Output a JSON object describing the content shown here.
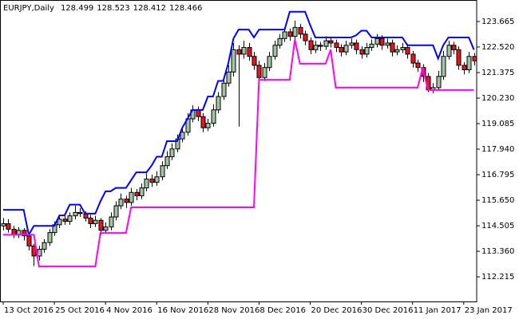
{
  "chart_data": {
    "type": "candlestick",
    "title": "EURJPY,Daily",
    "quote": [
      128.499,
      128.523,
      128.412,
      128.466
    ],
    "categories": [
      "13 Oct 2016",
      null,
      null,
      null,
      null,
      null,
      null,
      null,
      null,
      null,
      "25 Oct 2016",
      null,
      null,
      null,
      null,
      null,
      null,
      null,
      null,
      null,
      "4 Nov 2016",
      null,
      null,
      null,
      null,
      null,
      null,
      null,
      null,
      null,
      "16 Nov 2016",
      null,
      null,
      null,
      null,
      null,
      null,
      null,
      null,
      null,
      "28 Nov 2016",
      null,
      null,
      null,
      null,
      null,
      null,
      null,
      null,
      null,
      "8 Dec 2016",
      null,
      null,
      null,
      null,
      null,
      null,
      null,
      null,
      null,
      "20 Dec 2016",
      null,
      null,
      null,
      null,
      null,
      null,
      null,
      null,
      null,
      "30 Dec 2016",
      null,
      null,
      null,
      null,
      null,
      null,
      null,
      null,
      null,
      "11 Jan 2017",
      null,
      null,
      null,
      null,
      null,
      null,
      null,
      null,
      null,
      "23 Jan 2017",
      null,
      null
    ],
    "candles": [
      [
        114.5,
        114.85,
        114.3,
        114.6
      ],
      [
        114.6,
        114.8,
        114.2,
        114.35
      ],
      [
        114.35,
        114.5,
        113.95,
        114.1
      ],
      [
        114.1,
        114.45,
        113.95,
        114.3
      ],
      [
        114.3,
        114.4,
        113.85,
        114.05
      ],
      [
        114.05,
        114.2,
        113.4,
        113.6
      ],
      [
        113.6,
        113.7,
        112.7,
        113.15
      ],
      [
        113.15,
        113.6,
        112.95,
        113.45
      ],
      [
        113.45,
        113.9,
        113.3,
        113.75
      ],
      [
        113.75,
        114.35,
        113.6,
        114.2
      ],
      [
        114.2,
        114.7,
        114.05,
        114.55
      ],
      [
        114.55,
        114.95,
        114.4,
        114.8
      ],
      [
        114.8,
        114.95,
        114.55,
        114.7
      ],
      [
        114.7,
        115.1,
        114.55,
        114.95
      ],
      [
        114.95,
        115.4,
        114.8,
        115.1
      ],
      [
        115.1,
        115.3,
        114.9,
        115.05
      ],
      [
        115.05,
        115.15,
        114.7,
        114.85
      ],
      [
        114.85,
        115.0,
        114.4,
        114.6
      ],
      [
        114.6,
        114.95,
        114.45,
        114.75
      ],
      [
        114.75,
        114.85,
        114.1,
        114.3
      ],
      [
        114.3,
        114.65,
        114.15,
        114.45
      ],
      [
        114.45,
        115.1,
        114.3,
        114.9
      ],
      [
        114.9,
        115.6,
        114.75,
        115.4
      ],
      [
        115.4,
        115.95,
        115.25,
        115.7
      ],
      [
        115.7,
        115.85,
        115.3,
        115.55
      ],
      [
        115.55,
        116.2,
        115.4,
        116.0
      ],
      [
        116.0,
        116.15,
        115.65,
        115.85
      ],
      [
        115.85,
        116.4,
        115.7,
        116.2
      ],
      [
        116.2,
        116.85,
        116.05,
        116.6
      ],
      [
        116.6,
        116.8,
        116.25,
        116.45
      ],
      [
        116.45,
        116.95,
        116.3,
        116.7
      ],
      [
        116.7,
        117.4,
        116.55,
        117.2
      ],
      [
        117.2,
        117.85,
        117.05,
        117.6
      ],
      [
        117.6,
        118.2,
        117.45,
        117.95
      ],
      [
        117.95,
        118.6,
        117.8,
        118.4
      ],
      [
        118.4,
        118.9,
        118.25,
        118.7
      ],
      [
        118.7,
        119.55,
        118.55,
        119.3
      ],
      [
        119.3,
        119.9,
        119.15,
        119.7
      ],
      [
        119.7,
        119.85,
        119.2,
        119.4
      ],
      [
        119.4,
        119.55,
        118.7,
        118.9
      ],
      [
        118.9,
        119.3,
        118.75,
        119.1
      ],
      [
        119.1,
        119.95,
        118.95,
        119.7
      ],
      [
        119.7,
        120.5,
        119.55,
        120.3
      ],
      [
        120.3,
        121.1,
        120.15,
        120.9
      ],
      [
        120.9,
        121.7,
        120.75,
        121.4
      ],
      [
        121.4,
        122.7,
        121.2,
        122.4
      ],
      [
        122.4,
        122.6,
        118.95,
        122.2
      ],
      [
        122.2,
        122.8,
        122.0,
        122.5
      ],
      [
        122.5,
        122.7,
        121.9,
        122.1
      ],
      [
        122.1,
        122.3,
        121.5,
        121.7
      ],
      [
        121.7,
        121.9,
        121.0,
        121.15
      ],
      [
        121.15,
        121.8,
        121.0,
        121.6
      ],
      [
        121.6,
        122.3,
        121.45,
        122.1
      ],
      [
        122.1,
        122.8,
        121.95,
        122.6
      ],
      [
        122.6,
        123.1,
        122.45,
        122.9
      ],
      [
        122.9,
        123.4,
        122.75,
        123.2
      ],
      [
        123.2,
        123.35,
        122.8,
        123.0
      ],
      [
        123.0,
        123.7,
        122.85,
        123.4
      ],
      [
        123.4,
        123.55,
        122.9,
        123.1
      ],
      [
        123.1,
        123.25,
        122.6,
        122.8
      ],
      [
        122.8,
        122.95,
        122.2,
        122.4
      ],
      [
        122.4,
        122.8,
        122.25,
        122.6
      ],
      [
        122.6,
        122.75,
        122.35,
        122.55
      ],
      [
        122.55,
        123.0,
        122.4,
        122.8
      ],
      [
        122.8,
        122.95,
        122.5,
        122.7
      ],
      [
        122.7,
        122.85,
        122.3,
        122.5
      ],
      [
        122.5,
        122.65,
        122.1,
        122.3
      ],
      [
        122.3,
        122.8,
        122.15,
        122.6
      ],
      [
        122.6,
        122.9,
        122.45,
        122.7
      ],
      [
        122.7,
        122.85,
        122.2,
        122.4
      ],
      [
        122.4,
        122.55,
        122.0,
        122.2
      ],
      [
        122.2,
        122.7,
        122.05,
        122.5
      ],
      [
        122.5,
        122.85,
        122.35,
        122.65
      ],
      [
        122.65,
        123.1,
        122.5,
        122.9
      ],
      [
        122.9,
        123.05,
        122.4,
        122.6
      ],
      [
        122.6,
        122.9,
        122.45,
        122.7
      ],
      [
        122.7,
        122.85,
        122.1,
        122.3
      ],
      [
        122.3,
        122.6,
        122.15,
        122.4
      ],
      [
        122.4,
        122.7,
        122.25,
        122.5
      ],
      [
        122.5,
        122.65,
        122.0,
        122.2
      ],
      [
        122.2,
        122.35,
        121.6,
        121.8
      ],
      [
        121.8,
        121.95,
        121.4,
        121.6
      ],
      [
        121.6,
        121.75,
        120.95,
        121.2
      ],
      [
        121.2,
        121.35,
        120.5,
        120.6
      ],
      [
        120.6,
        120.9,
        120.45,
        120.7
      ],
      [
        120.7,
        121.45,
        120.55,
        121.2
      ],
      [
        121.2,
        122.35,
        121.05,
        122.1
      ],
      [
        122.1,
        122.8,
        121.95,
        122.6
      ],
      [
        122.6,
        122.75,
        122.2,
        122.4
      ],
      [
        122.4,
        122.55,
        121.5,
        121.7
      ],
      [
        121.7,
        121.85,
        121.3,
        121.5
      ],
      [
        121.5,
        122.3,
        121.35,
        122.1
      ],
      [
        122.1,
        122.25,
        121.7,
        121.9
      ]
    ],
    "up_color": "#a3c4a3",
    "down_color": "#e8141e",
    "series": [
      {
        "color": "#0000ff",
        "values": [
          115.22,
          115.22,
          115.22,
          115.22,
          115.22,
          114.1,
          114.5,
          114.5,
          114.5,
          114.5,
          114.5,
          114.97,
          114.97,
          115.45,
          115.45,
          115.45,
          115.05,
          115.05,
          115.05,
          115.6,
          116.05,
          116.05,
          116.2,
          116.2,
          116.2,
          116.55,
          116.9,
          116.9,
          116.9,
          117.2,
          117.6,
          117.6,
          118.3,
          118.3,
          118.3,
          118.9,
          119.3,
          119.7,
          119.7,
          119.7,
          120.3,
          120.3,
          121.0,
          121.0,
          121.8,
          122.9,
          123.3,
          123.3,
          123.3,
          122.95,
          123.3,
          123.3,
          123.3,
          123.3,
          123.3,
          123.3,
          124.1,
          124.1,
          124.1,
          124.1,
          123.5,
          122.95,
          122.95,
          122.95,
          122.95,
          122.95,
          122.95,
          122.95,
          122.95,
          123.05,
          123.25,
          123.25,
          122.95,
          122.95,
          122.95,
          122.95,
          122.95,
          122.95,
          122.95,
          122.6,
          122.6,
          122.6,
          122.6,
          122.6,
          122.6,
          122.0,
          122.6,
          122.95,
          122.95,
          122.95,
          122.95,
          122.95,
          122.4
        ]
      },
      {
        "color": "#ff00ff",
        "values": [
          114.1,
          114.1,
          114.1,
          114.1,
          114.1,
          114.1,
          114.1,
          112.68,
          112.68,
          112.68,
          112.68,
          112.68,
          112.68,
          112.68,
          112.68,
          112.68,
          112.68,
          112.68,
          112.68,
          114.18,
          114.18,
          114.18,
          114.18,
          114.18,
          114.18,
          115.33,
          115.33,
          115.33,
          115.33,
          115.33,
          115.33,
          115.33,
          115.33,
          115.33,
          115.33,
          115.33,
          115.33,
          115.33,
          115.33,
          115.33,
          115.33,
          115.33,
          115.33,
          115.33,
          115.33,
          115.33,
          115.33,
          115.33,
          115.33,
          115.33,
          121.05,
          121.05,
          121.05,
          121.05,
          121.05,
          121.05,
          121.05,
          122.85,
          121.77,
          121.77,
          121.77,
          121.77,
          121.77,
          121.77,
          122.4,
          120.7,
          120.7,
          120.7,
          120.7,
          120.7,
          120.7,
          120.7,
          120.7,
          120.7,
          120.7,
          120.7,
          120.7,
          120.7,
          120.7,
          120.7,
          120.7,
          120.7,
          121.6,
          120.59,
          120.59,
          120.59,
          120.59,
          120.59,
          120.59,
          120.59,
          120.59,
          120.59,
          120.59
        ]
      }
    ],
    "ylim": [
      111.11,
      124.45
    ],
    "yticks": [
      {
        "value": 112.215,
        "label": "112.215"
      },
      {
        "value": 113.36,
        "label": "113.360"
      },
      {
        "value": 114.505,
        "label": "114.505"
      },
      {
        "value": 115.65,
        "label": "115.650"
      },
      {
        "value": 116.795,
        "label": "116.795"
      },
      {
        "value": 117.94,
        "label": "117.940"
      },
      {
        "value": 119.085,
        "label": "119.085"
      },
      {
        "value": 120.23,
        "label": "120.230"
      },
      {
        "value": 121.375,
        "label": "121.375"
      },
      {
        "value": 122.52,
        "label": "122.520"
      },
      {
        "value": 123.665,
        "label": "123.665"
      }
    ]
  }
}
